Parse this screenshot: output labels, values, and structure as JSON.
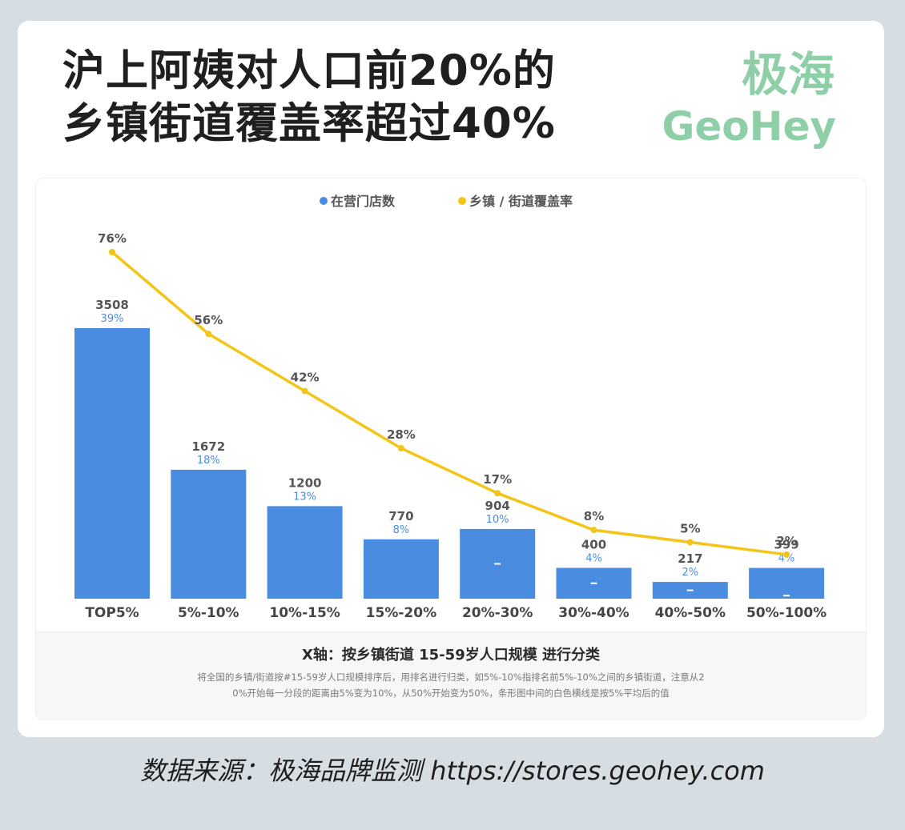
{
  "header": {
    "title_line1": "沪上阿姨对人口前20%的",
    "title_line2": "乡镇街道覆盖率超过40%",
    "logo_cn": "极海",
    "logo_en": "GeoHey"
  },
  "chart_data": {
    "type": "bar",
    "categories": [
      "TOP5%",
      "5%-10%",
      "10%-15%",
      "15%-20%",
      "20%-30%",
      "30%-40%",
      "40%-50%",
      "50%-100%"
    ],
    "series": [
      {
        "name": "在营门店数",
        "type": "bar",
        "color": "#4a8de0",
        "values": [
          3508,
          1672,
          1200,
          770,
          904,
          400,
          217,
          399
        ],
        "labels": [
          "3508",
          "1672",
          "1200",
          "770",
          "904",
          "400",
          "217",
          "399"
        ],
        "share_labels": [
          "39%",
          "18%",
          "13%",
          "8%",
          "10%",
          "4%",
          "2%",
          "4%"
        ]
      },
      {
        "name": "乡镇 / 街道覆盖率",
        "type": "line",
        "color": "#f2c518",
        "values": [
          76,
          56,
          42,
          28,
          17,
          8,
          5,
          2
        ],
        "labels": [
          "76%",
          "56%",
          "42%",
          "28%",
          "17%",
          "8%",
          "5%",
          "2%"
        ]
      }
    ],
    "per5_avg_markers": [
      null,
      null,
      null,
      null,
      452,
      200,
      108.5,
      39.9
    ],
    "bar_ylim": [
      0,
      3508
    ],
    "line_ylim": [
      0,
      76
    ],
    "legend_position": "top-center",
    "grid": false
  },
  "note": {
    "title": "X轴：按乡镇街道 15-59岁人口规模 进行分类",
    "text_line1": "将全国的乡镇/街道按#15-59岁人口规模排序后，用排名进行归类，如5%-10%指排名前5%-10%之间的乡镇街道，注意从2",
    "text_line2": "0%开始每一分段的距离由5%变为10%，从50%开始变为50%，条形图中间的白色横线是按5%平均后的值"
  },
  "footer": {
    "source": "数据来源：极海品牌监测  https://stores.geohey.com"
  }
}
